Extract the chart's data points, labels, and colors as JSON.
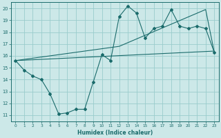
{
  "xlabel": "Humidex (Indice chaleur)",
  "xlim": [
    -0.5,
    23.5
  ],
  "ylim": [
    10.5,
    20.5
  ],
  "xticks": [
    0,
    1,
    2,
    3,
    4,
    5,
    6,
    7,
    8,
    9,
    10,
    11,
    12,
    13,
    14,
    15,
    16,
    17,
    18,
    19,
    20,
    21,
    22,
    23
  ],
  "yticks": [
    11,
    12,
    13,
    14,
    15,
    16,
    17,
    18,
    19,
    20
  ],
  "bg_color": "#cce8e8",
  "line_color": "#1a6b6b",
  "grid_color": "#99cccc",
  "line1_x": [
    0,
    1,
    2,
    3,
    4,
    5,
    6,
    7,
    8,
    9,
    10,
    11,
    12,
    13,
    14,
    15,
    16,
    17,
    18,
    19,
    20,
    21,
    22,
    23
  ],
  "line1_y": [
    15.6,
    14.8,
    14.3,
    14.0,
    12.8,
    11.1,
    11.2,
    11.5,
    11.5,
    13.8,
    16.1,
    15.6,
    19.3,
    20.2,
    19.6,
    17.5,
    18.3,
    18.5,
    19.9,
    18.5,
    18.3,
    18.5,
    18.3,
    16.3
  ],
  "line2_x": [
    0,
    23
  ],
  "line2_y": [
    15.6,
    16.4
  ],
  "line3_x": [
    0,
    12,
    22,
    23
  ],
  "line3_y": [
    15.6,
    16.8,
    19.9,
    16.3
  ]
}
